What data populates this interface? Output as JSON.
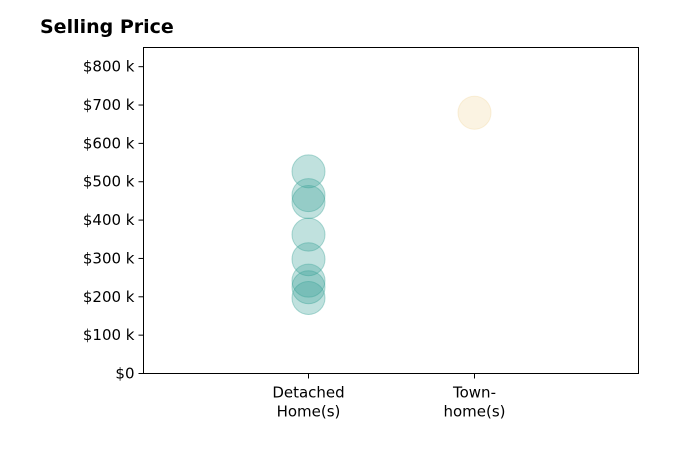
{
  "chart_data": {
    "type": "scatter",
    "title": "Selling Price",
    "xlabel": "",
    "ylabel": "",
    "categories": [
      [
        "Detached",
        "Home(s)"
      ],
      [
        "Town-",
        "home(s)"
      ]
    ],
    "ylim": [
      0,
      850000
    ],
    "yticks": [
      0,
      100000,
      200000,
      300000,
      400000,
      500000,
      600000,
      700000,
      800000
    ],
    "ytick_labels": [
      "$0",
      "$100 k",
      "$200 k",
      "$300 k",
      "$400 k",
      "$500 k",
      "$600 k",
      "$700 k",
      "$800 k"
    ],
    "grid": false,
    "series": [
      {
        "category_index": 0,
        "color": "#3aa397",
        "values": [
          197000,
          225000,
          242000,
          298000,
          362000,
          447000,
          465000,
          527000
        ]
      },
      {
        "category_index": 1,
        "color": "#f2d9a6",
        "values": [
          680000
        ]
      }
    ]
  }
}
